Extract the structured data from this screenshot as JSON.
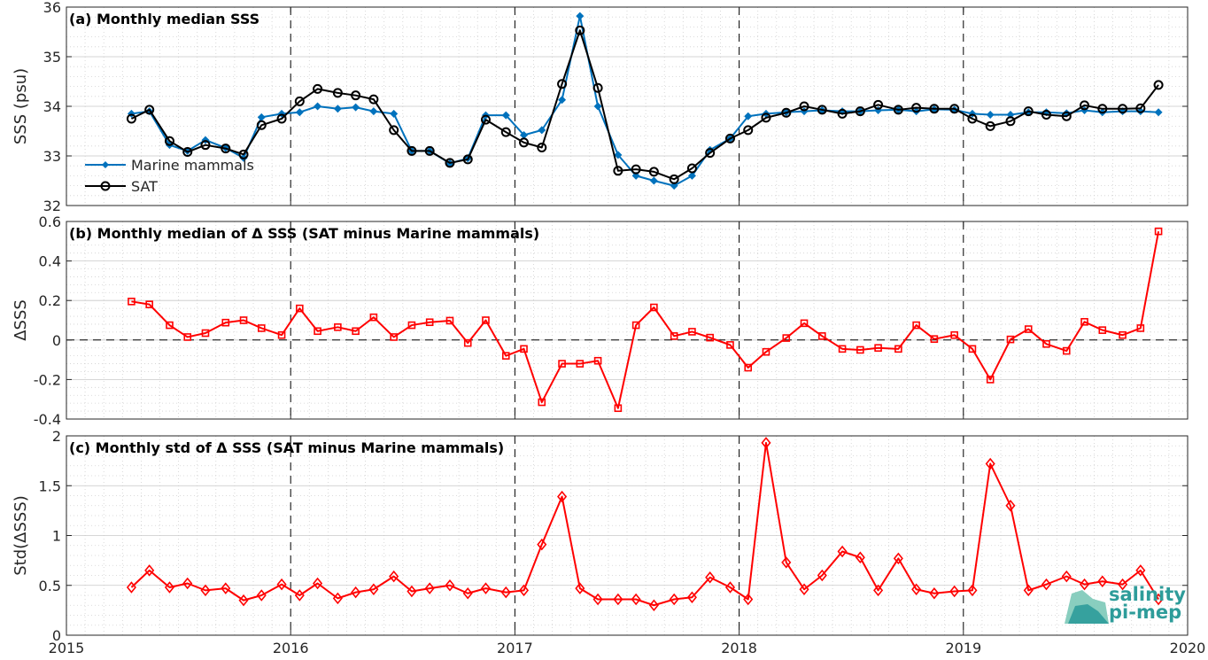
{
  "chart_data": [
    {
      "type": "line",
      "title": "(a) Monthly median SSS",
      "ylabel": "SSS (psu)",
      "xlim": [
        2015,
        2020
      ],
      "ylim": [
        32,
        36
      ],
      "yticks": [
        "32",
        "33",
        "34",
        "35",
        "36"
      ],
      "grid": true,
      "legend_position": "bottom-left",
      "x": [
        2015.29,
        2015.37,
        2015.46,
        2015.54,
        2015.62,
        2015.71,
        2015.79,
        2015.87,
        2015.96,
        2016.04,
        2016.12,
        2016.21,
        2016.29,
        2016.37,
        2016.46,
        2016.54,
        2016.62,
        2016.71,
        2016.79,
        2016.87,
        2016.96,
        2017.04,
        2017.12,
        2017.21,
        2017.29,
        2017.37,
        2017.46,
        2017.54,
        2017.62,
        2017.71,
        2017.79,
        2017.87,
        2017.96,
        2018.04,
        2018.12,
        2018.21,
        2018.29,
        2018.37,
        2018.46,
        2018.54,
        2018.62,
        2018.71,
        2018.79,
        2018.87,
        2018.96,
        2019.04,
        2019.12,
        2019.21,
        2019.29,
        2019.37,
        2019.46,
        2019.54,
        2019.62,
        2019.71,
        2019.79,
        2019.87
      ],
      "series": [
        {
          "name": "Marine mammals",
          "color": "#0072bd",
          "marker": "diamond-filled",
          "values": [
            33.85,
            33.9,
            33.22,
            33.1,
            33.32,
            33.16,
            32.96,
            33.78,
            33.85,
            33.88,
            34.0,
            33.95,
            33.98,
            33.9,
            33.85,
            33.1,
            33.1,
            32.85,
            32.95,
            33.82,
            33.82,
            33.42,
            33.52,
            34.13,
            35.82,
            34.0,
            33.02,
            32.6,
            32.5,
            32.4,
            32.6,
            33.12,
            33.35,
            33.8,
            33.85,
            33.88,
            33.9,
            33.92,
            33.9,
            33.9,
            33.92,
            33.93,
            33.9,
            33.94,
            33.93,
            33.85,
            33.83,
            33.83,
            33.88,
            33.88,
            33.86,
            33.92,
            33.88,
            33.9,
            33.9,
            33.88
          ]
        },
        {
          "name": "SAT",
          "color": "#000000",
          "marker": "circle-open",
          "values": [
            33.75,
            33.93,
            33.3,
            33.08,
            33.22,
            33.15,
            33.03,
            33.62,
            33.75,
            34.1,
            34.35,
            34.27,
            34.22,
            34.14,
            33.52,
            33.1,
            33.1,
            32.86,
            32.93,
            33.73,
            33.48,
            33.27,
            33.17,
            34.45,
            35.53,
            34.37,
            32.7,
            32.73,
            32.68,
            32.53,
            32.75,
            33.06,
            33.35,
            33.52,
            33.77,
            33.87,
            34.0,
            33.93,
            33.85,
            33.9,
            34.03,
            33.93,
            33.97,
            33.95,
            33.95,
            33.75,
            33.6,
            33.7,
            33.9,
            33.83,
            33.8,
            34.02,
            33.95,
            33.95,
            33.96,
            34.43
          ]
        }
      ]
    },
    {
      "type": "line",
      "title": "(b) Monthly median of Δ SSS (SAT minus Marine mammals)",
      "ylabel": "ΔSSS",
      "xlim": [
        2015,
        2020
      ],
      "ylim": [
        -0.4,
        0.6
      ],
      "yticks": [
        "-0.4",
        "-0.2",
        "0",
        "0.2",
        "0.4",
        "0.6"
      ],
      "grid": true,
      "x": [
        2015.29,
        2015.37,
        2015.46,
        2015.54,
        2015.62,
        2015.71,
        2015.79,
        2015.87,
        2015.96,
        2016.04,
        2016.12,
        2016.21,
        2016.29,
        2016.37,
        2016.46,
        2016.54,
        2016.62,
        2016.71,
        2016.79,
        2016.87,
        2016.96,
        2017.04,
        2017.12,
        2017.21,
        2017.29,
        2017.37,
        2017.46,
        2017.54,
        2017.62,
        2017.71,
        2017.79,
        2017.87,
        2017.96,
        2018.04,
        2018.12,
        2018.21,
        2018.29,
        2018.37,
        2018.46,
        2018.54,
        2018.62,
        2018.71,
        2018.79,
        2018.87,
        2018.96,
        2019.04,
        2019.12,
        2019.21,
        2019.29,
        2019.37,
        2019.46,
        2019.54,
        2019.62,
        2019.71,
        2019.79,
        2019.87
      ],
      "series": [
        {
          "color": "#ff0000",
          "marker": "square-open",
          "values": [
            0.195,
            0.18,
            0.075,
            0.015,
            0.035,
            0.088,
            0.1,
            0.06,
            0.025,
            0.16,
            0.045,
            0.065,
            0.045,
            0.115,
            0.015,
            0.075,
            0.09,
            0.098,
            -0.015,
            0.1,
            -0.08,
            -0.045,
            -0.315,
            -0.12,
            -0.12,
            -0.105,
            -0.345,
            0.075,
            0.165,
            0.02,
            0.042,
            0.012,
            -0.025,
            -0.14,
            -0.06,
            0.01,
            0.085,
            0.02,
            -0.045,
            -0.05,
            -0.04,
            -0.045,
            0.075,
            0.005,
            0.025,
            -0.045,
            -0.2,
            0.003,
            0.055,
            -0.02,
            -0.055,
            0.092,
            0.05,
            0.025,
            0.06,
            0.55
          ]
        }
      ]
    },
    {
      "type": "line",
      "title": "(c) Monthly std of Δ SSS (SAT minus Marine mammals)",
      "ylabel": "Std(ΔSSS)",
      "xlim": [
        2015,
        2020
      ],
      "ylim": [
        0,
        2
      ],
      "yticks": [
        "0",
        "0.5",
        "1",
        "1.5",
        "2"
      ],
      "xticks": [
        "2015",
        "2016",
        "2017",
        "2018",
        "2019",
        "2020"
      ],
      "grid": true,
      "x": [
        2015.29,
        2015.37,
        2015.46,
        2015.54,
        2015.62,
        2015.71,
        2015.79,
        2015.87,
        2015.96,
        2016.04,
        2016.12,
        2016.21,
        2016.29,
        2016.37,
        2016.46,
        2016.54,
        2016.62,
        2016.71,
        2016.79,
        2016.87,
        2016.96,
        2017.04,
        2017.12,
        2017.21,
        2017.29,
        2017.37,
        2017.46,
        2017.54,
        2017.62,
        2017.71,
        2017.79,
        2017.87,
        2017.96,
        2018.04,
        2018.12,
        2018.21,
        2018.29,
        2018.37,
        2018.46,
        2018.54,
        2018.62,
        2018.71,
        2018.79,
        2018.87,
        2018.96,
        2019.04,
        2019.12,
        2019.21,
        2019.29,
        2019.37,
        2019.46,
        2019.54,
        2019.62,
        2019.71,
        2019.79,
        2019.87
      ],
      "series": [
        {
          "color": "#ff0000",
          "marker": "diamond-open",
          "values": [
            0.48,
            0.65,
            0.48,
            0.52,
            0.45,
            0.47,
            0.35,
            0.4,
            0.51,
            0.4,
            0.52,
            0.37,
            0.43,
            0.46,
            0.59,
            0.44,
            0.47,
            0.5,
            0.42,
            0.47,
            0.43,
            0.45,
            0.91,
            1.39,
            0.47,
            0.36,
            0.36,
            0.36,
            0.3,
            0.36,
            0.38,
            0.58,
            0.48,
            0.36,
            1.93,
            0.73,
            0.46,
            0.6,
            0.84,
            0.78,
            0.45,
            0.77,
            0.46,
            0.42,
            0.44,
            0.45,
            1.72,
            1.3,
            0.45,
            0.51,
            0.59,
            0.51,
            0.54,
            0.51,
            0.65,
            0.36
          ]
        }
      ]
    }
  ],
  "logo": {
    "line1": "salinity",
    "line2": "pi-mep"
  }
}
